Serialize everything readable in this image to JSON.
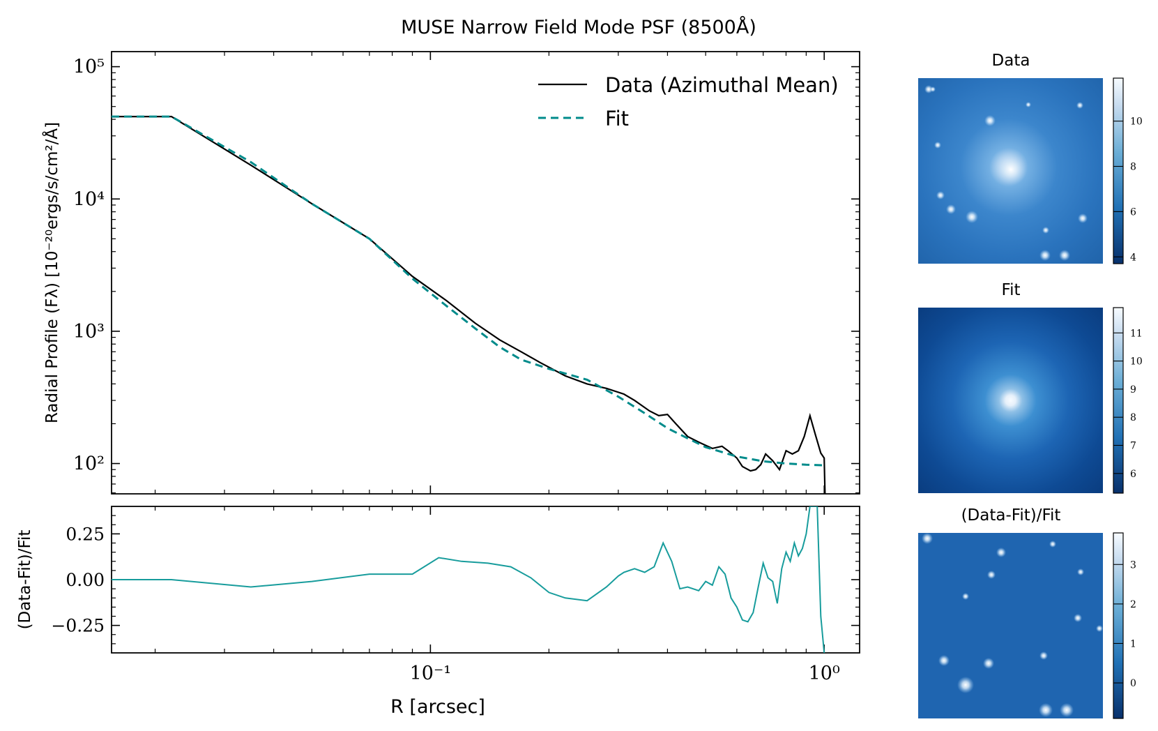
{
  "figure": {
    "title": "MUSE Narrow Field Mode PSF (8500Å)",
    "colors": {
      "data_line": "#000000",
      "fit_line": "#008b8b",
      "residual_line": "#179c9c",
      "cmap_dark": "#08306b",
      "cmap_mid": "#2171b5",
      "cmap_light": "#f7fbff"
    }
  },
  "chart_data": [
    {
      "id": "profile",
      "type": "line",
      "xscale": "log",
      "yscale": "log",
      "xlim": [
        0.0155,
        1.23
      ],
      "ylim": [
        59,
        130000
      ],
      "ylabel": "Radial Profile (Fλ) [10⁻²⁰ergs/s/cm²/Å]",
      "ytick_labels": [
        "10²",
        "10³",
        "10⁴",
        "10⁵"
      ],
      "legend": {
        "placement": "top-right",
        "entries": [
          "Data (Azimuthal Mean)",
          "Fit"
        ]
      },
      "series": [
        {
          "name": "Data (Azimuthal Mean)",
          "x": [
            0.0155,
            0.022,
            0.035,
            0.05,
            0.07,
            0.09,
            0.11,
            0.13,
            0.15,
            0.17,
            0.19,
            0.22,
            0.25,
            0.28,
            0.31,
            0.33,
            0.36,
            0.38,
            0.4,
            0.42,
            0.45,
            0.48,
            0.52,
            0.55,
            0.57,
            0.6,
            0.62,
            0.65,
            0.67,
            0.69,
            0.71,
            0.74,
            0.77,
            0.8,
            0.83,
            0.86,
            0.89,
            0.92,
            0.95,
            0.98,
            1.0,
            1.005
          ],
          "y": [
            42000,
            42000,
            18000,
            9200,
            5000,
            2600,
            1700,
            1150,
            860,
            700,
            580,
            460,
            400,
            370,
            335,
            300,
            250,
            230,
            235,
            200,
            160,
            145,
            130,
            135,
            125,
            110,
            95,
            88,
            90,
            98,
            118,
            105,
            90,
            125,
            118,
            125,
            160,
            230,
            165,
            120,
            110,
            58
          ]
        },
        {
          "name": "Fit",
          "x": [
            0.0155,
            0.022,
            0.035,
            0.05,
            0.07,
            0.09,
            0.11,
            0.13,
            0.15,
            0.17,
            0.2,
            0.25,
            0.3,
            0.35,
            0.4,
            0.45,
            0.5,
            0.6,
            0.7,
            0.8,
            0.9,
            1.0
          ],
          "y": [
            42000,
            42000,
            19000,
            9200,
            5000,
            2500,
            1550,
            1050,
            760,
            610,
            520,
            430,
            320,
            240,
            185,
            155,
            133,
            113,
            104,
            100,
            98,
            97
          ]
        }
      ]
    },
    {
      "id": "residual",
      "type": "line",
      "xscale": "log",
      "xlim": [
        0.0155,
        1.23
      ],
      "ylim": [
        -0.4,
        0.4
      ],
      "xlabel": "R [arcsec]",
      "ylabel": "(Data-Fit)/Fit",
      "ytick_labels": [
        "−0.25",
        "0.00",
        "0.25"
      ],
      "xtick_labels": [
        "10⁻¹",
        "10⁰"
      ],
      "series": [
        {
          "x": [
            0.0155,
            0.022,
            0.035,
            0.05,
            0.07,
            0.09,
            0.105,
            0.12,
            0.14,
            0.16,
            0.18,
            0.2,
            0.22,
            0.25,
            0.28,
            0.3,
            0.31,
            0.33,
            0.35,
            0.37,
            0.39,
            0.41,
            0.43,
            0.45,
            0.48,
            0.5,
            0.52,
            0.54,
            0.56,
            0.58,
            0.6,
            0.62,
            0.64,
            0.66,
            0.68,
            0.7,
            0.72,
            0.74,
            0.76,
            0.78,
            0.8,
            0.82,
            0.84,
            0.86,
            0.88,
            0.9,
            0.92,
            0.96,
            0.98,
            1.0
          ],
          "y": [
            0.0,
            0.0,
            -0.04,
            -0.01,
            0.03,
            0.03,
            0.12,
            0.1,
            0.09,
            0.07,
            0.01,
            -0.07,
            -0.1,
            -0.115,
            -0.04,
            0.02,
            0.04,
            0.06,
            0.04,
            0.07,
            0.2,
            0.1,
            -0.05,
            -0.04,
            -0.06,
            -0.01,
            -0.03,
            0.07,
            0.03,
            -0.1,
            -0.15,
            -0.22,
            -0.23,
            -0.18,
            -0.04,
            0.09,
            0.01,
            -0.01,
            -0.13,
            0.06,
            0.15,
            0.1,
            0.2,
            0.13,
            0.17,
            0.25,
            0.4,
            0.4,
            -0.2,
            -0.4
          ]
        }
      ]
    },
    {
      "id": "image-panels",
      "type": "heatmap",
      "panels": [
        {
          "id": "data",
          "title": "Data",
          "colorbar_ticks": [
            "4",
            "6",
            "8",
            "10"
          ],
          "clim": [
            3.7,
            11.9
          ]
        },
        {
          "id": "fit",
          "title": "Fit",
          "colorbar_ticks": [
            "6",
            "7",
            "8",
            "9",
            "10",
            "11"
          ],
          "clim": [
            5.3,
            11.9
          ]
        },
        {
          "id": "resid",
          "title": "(Data-Fit)/Fit",
          "colorbar_ticks": [
            "0",
            "1",
            "2",
            "3"
          ],
          "clim": [
            -0.9,
            3.8
          ]
        }
      ]
    }
  ]
}
